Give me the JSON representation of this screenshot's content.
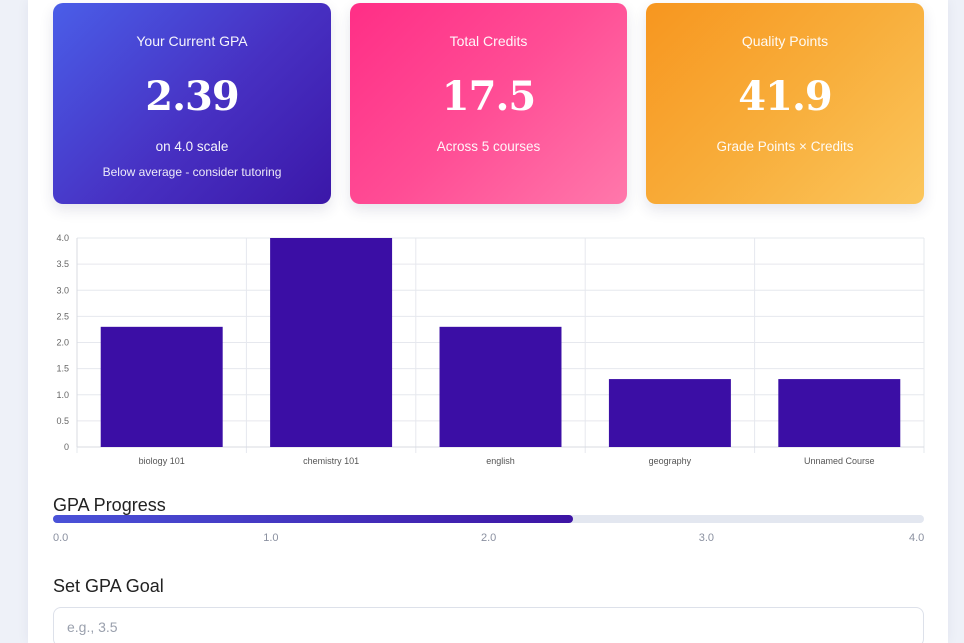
{
  "cards": {
    "gpa": {
      "label": "Your Current GPA",
      "value": "2.39",
      "sub": "on 4.0 scale",
      "note": "Below average - consider tutoring"
    },
    "credits": {
      "label": "Total Credits",
      "value": "17.5",
      "sub": "Across 5 courses"
    },
    "quality": {
      "label": "Quality Points",
      "value": "41.9",
      "sub": "Grade Points × Credits"
    }
  },
  "chart_data": {
    "type": "bar",
    "categories": [
      "biology 101",
      "chemistry 101",
      "english",
      "geography",
      "Unnamed Course"
    ],
    "values": [
      2.3,
      4.0,
      2.3,
      1.3,
      1.3
    ],
    "yticks": [
      "0",
      "0.5",
      "1.0",
      "1.5",
      "2.0",
      "2.5",
      "3.0",
      "3.5",
      "4.0"
    ],
    "ylim": [
      0,
      4.0
    ],
    "grid": true,
    "bar_color": "#3b0ea5"
  },
  "progress": {
    "title": "GPA Progress",
    "value": 2.39,
    "max": 4.0,
    "ticks": [
      "0.0",
      "1.0",
      "2.0",
      "3.0",
      "4.0"
    ]
  },
  "goal": {
    "title": "Set GPA Goal",
    "placeholder": "e.g., 3.5"
  }
}
